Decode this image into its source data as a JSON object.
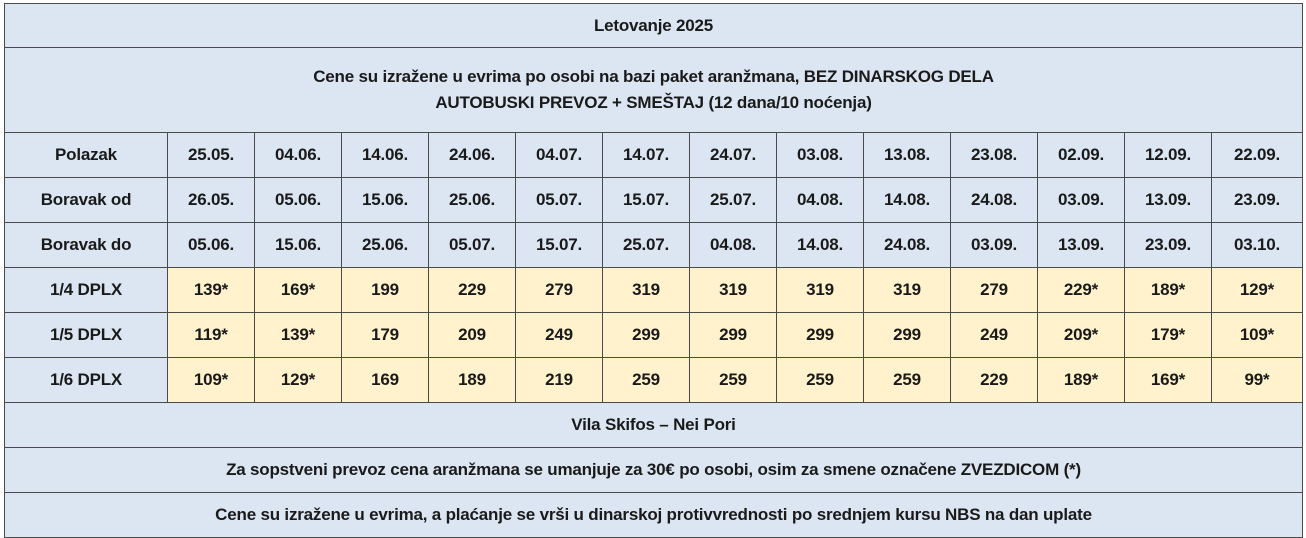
{
  "title": "Letovanje 2025",
  "subtitle": {
    "line1": "Cene su izražene u evrima po osobi na bazi paket aranžmana, BEZ DINARSKOG DELA",
    "line2": "AUTOBUSKI PREVOZ + SMEŠTAJ (12 dana/10 noćenja)"
  },
  "date_rows": [
    {
      "label": "Polazak",
      "values": [
        "25.05.",
        "04.06.",
        "14.06.",
        "24.06.",
        "04.07.",
        "14.07.",
        "24.07.",
        "03.08.",
        "13.08.",
        "23.08.",
        "02.09.",
        "12.09.",
        "22.09."
      ]
    },
    {
      "label": "Boravak od",
      "values": [
        "26.05.",
        "05.06.",
        "15.06.",
        "25.06.",
        "05.07.",
        "15.07.",
        "25.07.",
        "04.08.",
        "14.08.",
        "24.08.",
        "03.09.",
        "13.09.",
        "23.09."
      ]
    },
    {
      "label": "Boravak do",
      "values": [
        "05.06.",
        "15.06.",
        "25.06.",
        "05.07.",
        "15.07.",
        "25.07.",
        "04.08.",
        "14.08.",
        "24.08.",
        "03.09.",
        "13.09.",
        "23.09.",
        "03.10."
      ]
    }
  ],
  "price_rows": [
    {
      "label": "1/4 DPLX",
      "values": [
        "139*",
        "169*",
        "199",
        "229",
        "279",
        "319",
        "319",
        "319",
        "319",
        "279",
        "229*",
        "189*",
        "129*"
      ]
    },
    {
      "label": "1/5 DPLX",
      "values": [
        "119*",
        "139*",
        "179",
        "209",
        "249",
        "299",
        "299",
        "299",
        "299",
        "249",
        "209*",
        "179*",
        "109*"
      ]
    },
    {
      "label": "1/6 DPLX",
      "values": [
        "109*",
        "129*",
        "169",
        "189",
        "219",
        "259",
        "259",
        "259",
        "259",
        "229",
        "189*",
        "169*",
        "99*"
      ]
    }
  ],
  "accommodation": "Vila Skifos – Nei Pori",
  "note_transport": "Za sopstveni prevoz cena aranžmana se umanjuje za 30€ po osobi, osim za smene označene ZVEZDICOM (*)",
  "note_payment": "Cene su izražene u evrima, a plaćanje se vrši u dinarskoj protivvrednosti po srednjem kursu NBS na dan uplate",
  "colors": {
    "header_bg": "#dce6f2",
    "price_bg": "#fff2cc",
    "border": "#4a4a4a"
  }
}
